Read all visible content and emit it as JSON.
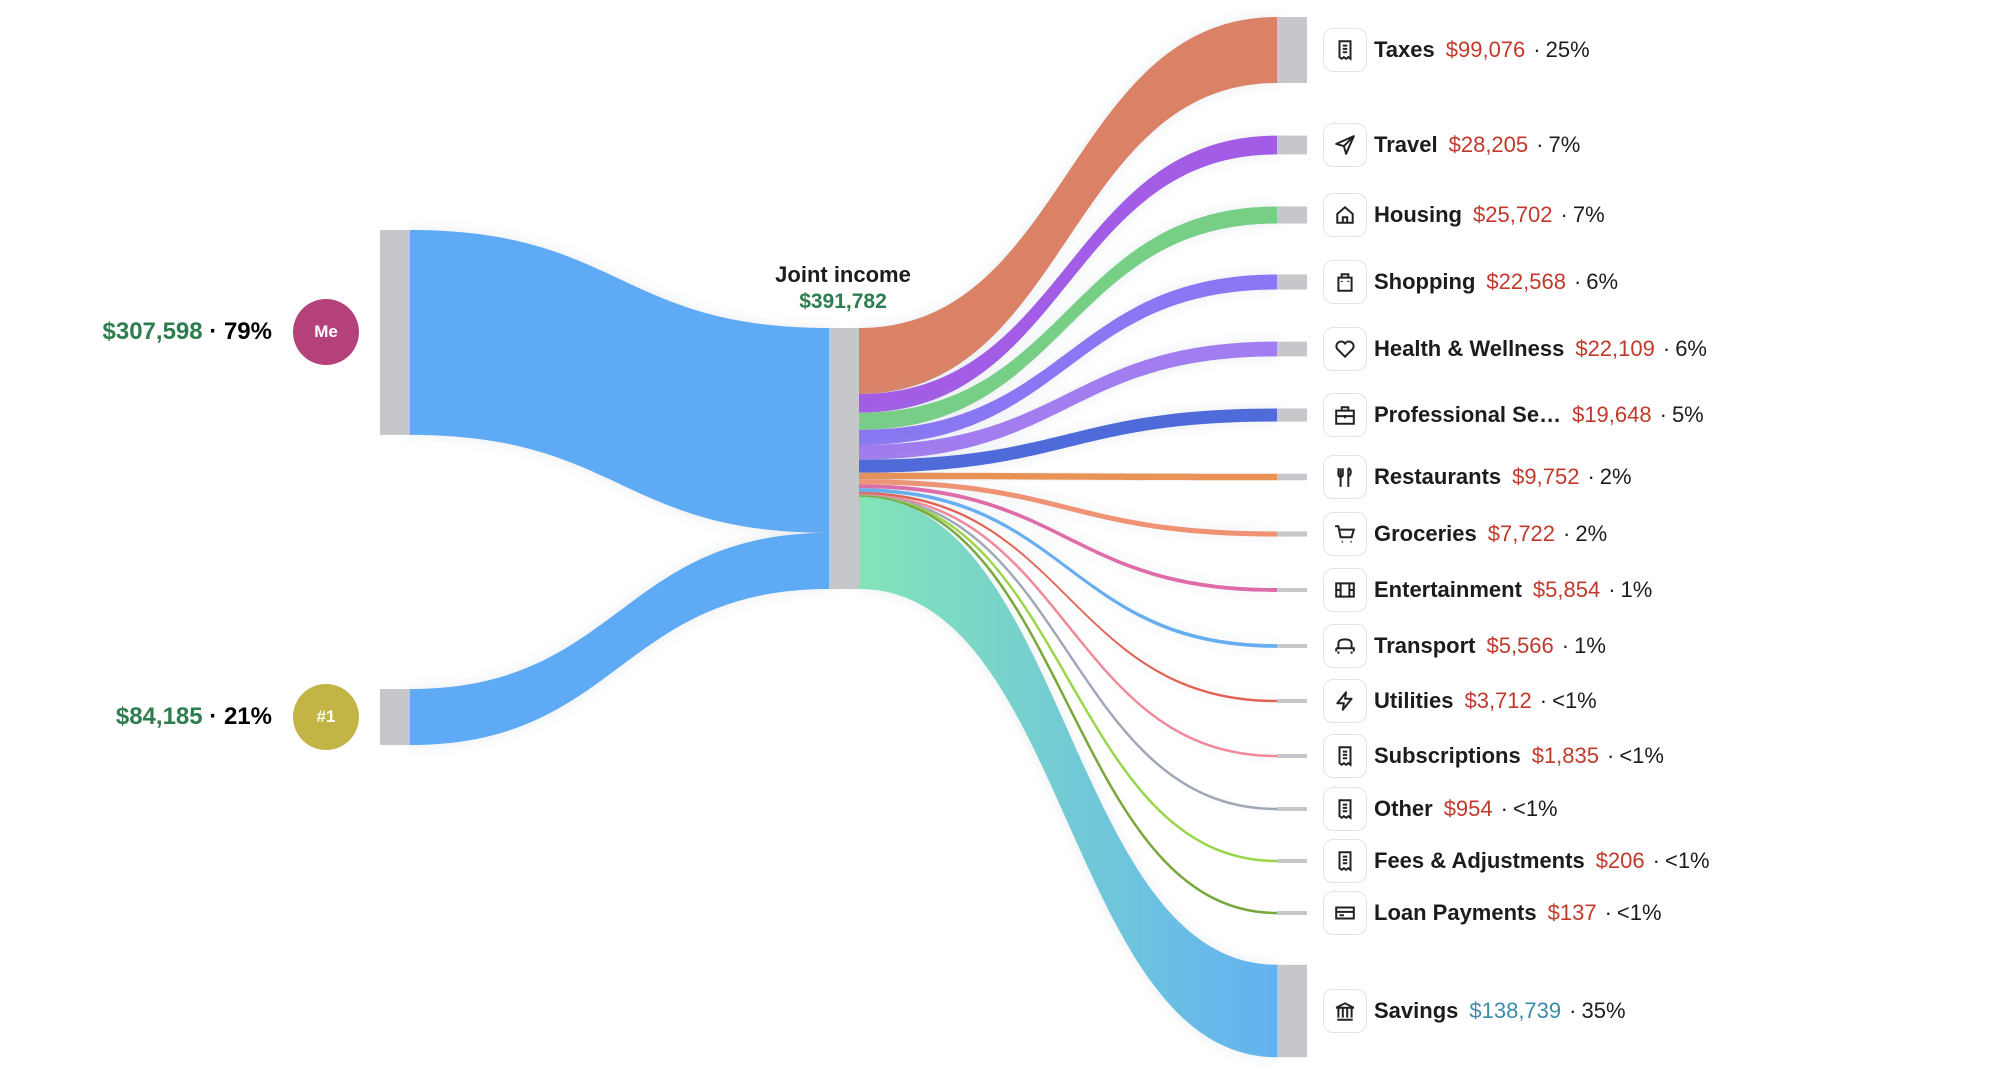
{
  "colors": {
    "income_value": "#2e7d4f",
    "expense_value": "#c0392b",
    "savings_value": "#3a8ca8",
    "node": "#c6c7ca",
    "income_link": "#5eaaf5"
  },
  "chart_data": {
    "type": "sankey",
    "sources": [
      {
        "name": "Me",
        "amount": "$307,598",
        "value": 307598,
        "pct": "79%",
        "avatar_color": "#b5417a"
      },
      {
        "name": "#1",
        "amount": "$84,185",
        "value": 84185,
        "pct": "21%",
        "avatar_color": "#c2b545"
      }
    ],
    "center": {
      "name": "Joint income",
      "amount": "$391,782",
      "value": 391782
    },
    "targets": [
      {
        "name": "Taxes",
        "amount": "$99,076",
        "value": 99076,
        "pct": "25%",
        "icon": "receipt-icon",
        "color": "#d9785a"
      },
      {
        "name": "Travel",
        "amount": "$28,205",
        "value": 28205,
        "pct": "7%",
        "icon": "paper-plane-icon",
        "color": "#9b4fe4"
      },
      {
        "name": "Housing",
        "amount": "$25,702",
        "value": 25702,
        "pct": "7%",
        "icon": "home-icon",
        "color": "#6ccb7c"
      },
      {
        "name": "Shopping",
        "amount": "$22,568",
        "value": 22568,
        "pct": "6%",
        "icon": "shopping-bag-icon",
        "color": "#7f6cf2"
      },
      {
        "name": "Health & Wellness",
        "amount": "$22,109",
        "value": 22109,
        "pct": "6%",
        "icon": "heart-icon",
        "color": "#9a72ee"
      },
      {
        "name": "Professional Se…",
        "amount": "$19,648",
        "value": 19648,
        "pct": "5%",
        "icon": "briefcase-icon",
        "color": "#3f5fd6"
      },
      {
        "name": "Restaurants",
        "amount": "$9,752",
        "value": 9752,
        "pct": "2%",
        "icon": "utensils-icon",
        "color": "#e8894a"
      },
      {
        "name": "Groceries",
        "amount": "$7,722",
        "value": 7722,
        "pct": "2%",
        "icon": "cart-icon",
        "color": "#ef8a6a"
      },
      {
        "name": "Entertainment",
        "amount": "$5,854",
        "value": 5854,
        "pct": "1%",
        "icon": "film-icon",
        "color": "#de5fa2"
      },
      {
        "name": "Transport",
        "amount": "$5,566",
        "value": 5566,
        "pct": "1%",
        "icon": "car-icon",
        "color": "#5aa8f0"
      },
      {
        "name": "Utilities",
        "amount": "$3,712",
        "value": 3712,
        "pct": "<1%",
        "icon": "lightning-icon",
        "color": "#e05545"
      },
      {
        "name": "Subscriptions",
        "amount": "$1,835",
        "value": 1835,
        "pct": "<1%",
        "icon": "receipt-icon",
        "color": "#f08a9a"
      },
      {
        "name": "Other",
        "amount": "$954",
        "value": 954,
        "pct": "<1%",
        "icon": "receipt-icon",
        "color": "#a0a8b8"
      },
      {
        "name": "Fees & Adjustments",
        "amount": "$206",
        "value": 206,
        "pct": "<1%",
        "icon": "receipt-icon",
        "color": "#9ad64a"
      },
      {
        "name": "Loan Payments",
        "amount": "$137",
        "value": 137,
        "pct": "<1%",
        "icon": "credit-card-icon",
        "color": "#78a83a"
      },
      {
        "name": "Savings",
        "amount": "$138,739",
        "value": 138739,
        "pct": "35%",
        "icon": "bank-icon",
        "color": "#6fc9c0"
      }
    ]
  }
}
